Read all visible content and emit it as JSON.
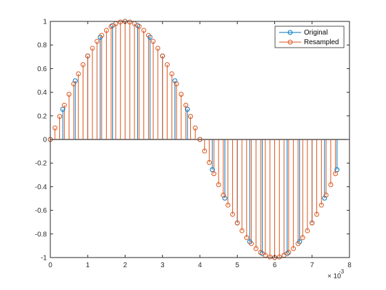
{
  "chart_data": {
    "type": "stem",
    "x_ticks": [
      "0",
      "1",
      "2",
      "3",
      "4",
      "5",
      "6",
      "7",
      "8"
    ],
    "y_ticks": [
      "-1",
      "-0.8",
      "-0.6",
      "-0.4",
      "-0.2",
      "0",
      "0.2",
      "0.4",
      "0.6",
      "0.8",
      "1"
    ],
    "x_exponent_base": "× 10",
    "x_exponent_power": "-3",
    "xlim": [
      0,
      0.008
    ],
    "ylim": [
      -1,
      1
    ],
    "grid": false,
    "legend_position": "top-right",
    "series": [
      {
        "name": "Original",
        "color": "#0072BD",
        "marker": "circle",
        "x": [
          0.0,
          0.000333,
          0.000667,
          0.001,
          0.001333,
          0.001667,
          0.002,
          0.002333,
          0.002667,
          0.003,
          0.003333,
          0.003667,
          0.004,
          0.004333,
          0.004667,
          0.005,
          0.005333,
          0.005667,
          0.006,
          0.006333,
          0.006667,
          0.007,
          0.007333,
          0.007667
        ],
        "y": [
          0.0,
          0.256,
          0.497,
          0.707,
          0.866,
          0.966,
          1.0,
          0.966,
          0.866,
          0.707,
          0.497,
          0.256,
          0.0,
          -0.256,
          -0.497,
          -0.707,
          -0.866,
          -0.966,
          -1.0,
          -0.966,
          -0.866,
          -0.707,
          -0.497,
          -0.256
        ]
      },
      {
        "name": "Resampled",
        "color": "#D95319",
        "marker": "circle",
        "x": [
          0.0,
          0.000125,
          0.00025,
          0.000375,
          0.0005,
          0.000625,
          0.00075,
          0.000875,
          0.001,
          0.001125,
          0.00125,
          0.001375,
          0.0015,
          0.001625,
          0.00175,
          0.001875,
          0.002,
          0.002125,
          0.00225,
          0.002375,
          0.0025,
          0.002625,
          0.00275,
          0.002875,
          0.003,
          0.003125,
          0.00325,
          0.003375,
          0.0035,
          0.003625,
          0.00375,
          0.003875,
          0.004,
          0.004125,
          0.00425,
          0.004375,
          0.0045,
          0.004625,
          0.00475,
          0.004875,
          0.005,
          0.005125,
          0.00525,
          0.005375,
          0.0055,
          0.005625,
          0.00575,
          0.005875,
          0.006,
          0.006125,
          0.00625,
          0.006375,
          0.0065,
          0.006625,
          0.00675,
          0.006875,
          0.007,
          0.007125,
          0.00725,
          0.007375,
          0.0075,
          0.007625
        ],
        "y": [
          0.0,
          0.098,
          0.195,
          0.29,
          0.383,
          0.471,
          0.556,
          0.634,
          0.707,
          0.773,
          0.831,
          0.882,
          0.924,
          0.957,
          0.981,
          0.995,
          1.0,
          0.995,
          0.981,
          0.957,
          0.924,
          0.882,
          0.831,
          0.773,
          0.707,
          0.634,
          0.556,
          0.471,
          0.383,
          0.29,
          0.195,
          0.098,
          0.0,
          -0.098,
          -0.195,
          -0.29,
          -0.383,
          -0.471,
          -0.556,
          -0.634,
          -0.707,
          -0.773,
          -0.831,
          -0.882,
          -0.924,
          -0.957,
          -0.981,
          -0.995,
          -1.0,
          -0.995,
          -0.981,
          -0.957,
          -0.924,
          -0.882,
          -0.831,
          -0.773,
          -0.707,
          -0.634,
          -0.556,
          -0.471,
          -0.383,
          -0.29
        ]
      }
    ]
  }
}
